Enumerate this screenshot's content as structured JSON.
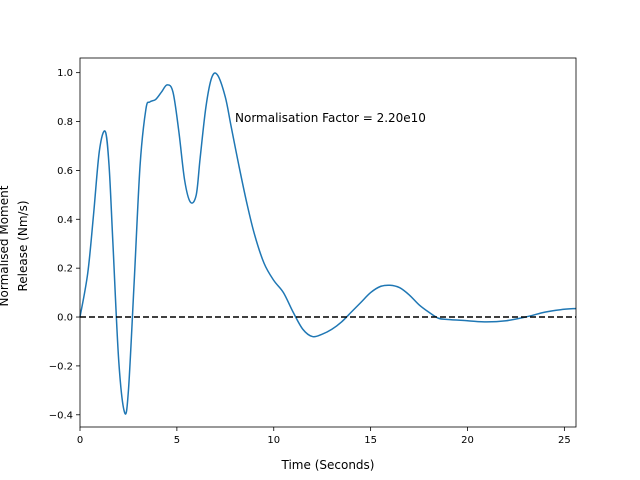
{
  "chart_data": {
    "type": "line",
    "xlabel": "Time (Seconds)",
    "ylabel": [
      "Normalised Moment",
      "Release (Nm/s)"
    ],
    "annotation": "Normalisation Factor = 2.20e10",
    "xlim": [
      0,
      25.6
    ],
    "ylim": [
      -0.45,
      1.06
    ],
    "xticks": [
      0,
      5,
      10,
      15,
      20,
      25
    ],
    "xtick_labels": [
      "0",
      "5",
      "10",
      "15",
      "20",
      "25"
    ],
    "yticks": [
      -0.4,
      -0.2,
      0.0,
      0.2,
      0.4,
      0.6,
      0.8,
      1.0
    ],
    "ytick_labels": [
      "−0.4",
      "−0.2",
      "0.0",
      "0.2",
      "0.4",
      "0.6",
      "0.8",
      "1.0"
    ],
    "grid": false,
    "reference_line": {
      "y": 0,
      "style": "dashed",
      "color": "#000000"
    },
    "series": [
      {
        "color": "#1f77b4",
        "x": [
          0,
          0.4,
          0.7,
          1.0,
          1.3,
          1.5,
          1.7,
          2.0,
          2.3,
          2.5,
          2.8,
          3.1,
          3.4,
          3.6,
          3.9,
          4.2,
          4.5,
          4.8,
          5.1,
          5.4,
          5.7,
          6.0,
          6.2,
          6.5,
          6.8,
          7.1,
          7.5,
          7.8,
          8.2,
          8.6,
          9.0,
          9.5,
          10.0,
          10.5,
          11.0,
          11.5,
          12.0,
          12.5,
          13.0,
          13.5,
          14.0,
          14.5,
          15.0,
          15.5,
          16.0,
          16.5,
          17.0,
          17.5,
          18.0,
          18.5,
          19.0,
          20.0,
          21.0,
          22.0,
          23.0,
          24.0,
          24.8,
          25.6
        ],
        "y": [
          0.0,
          0.18,
          0.42,
          0.68,
          0.76,
          0.62,
          0.3,
          -0.18,
          -0.39,
          -0.3,
          0.15,
          0.62,
          0.85,
          0.88,
          0.89,
          0.92,
          0.95,
          0.92,
          0.76,
          0.56,
          0.47,
          0.5,
          0.65,
          0.86,
          0.98,
          0.99,
          0.9,
          0.78,
          0.62,
          0.47,
          0.34,
          0.22,
          0.15,
          0.1,
          0.02,
          -0.05,
          -0.08,
          -0.07,
          -0.05,
          -0.02,
          0.02,
          0.06,
          0.1,
          0.125,
          0.13,
          0.12,
          0.09,
          0.05,
          0.02,
          -0.005,
          -0.01,
          -0.015,
          -0.02,
          -0.015,
          0.0,
          0.02,
          0.03,
          0.035
        ]
      }
    ]
  }
}
